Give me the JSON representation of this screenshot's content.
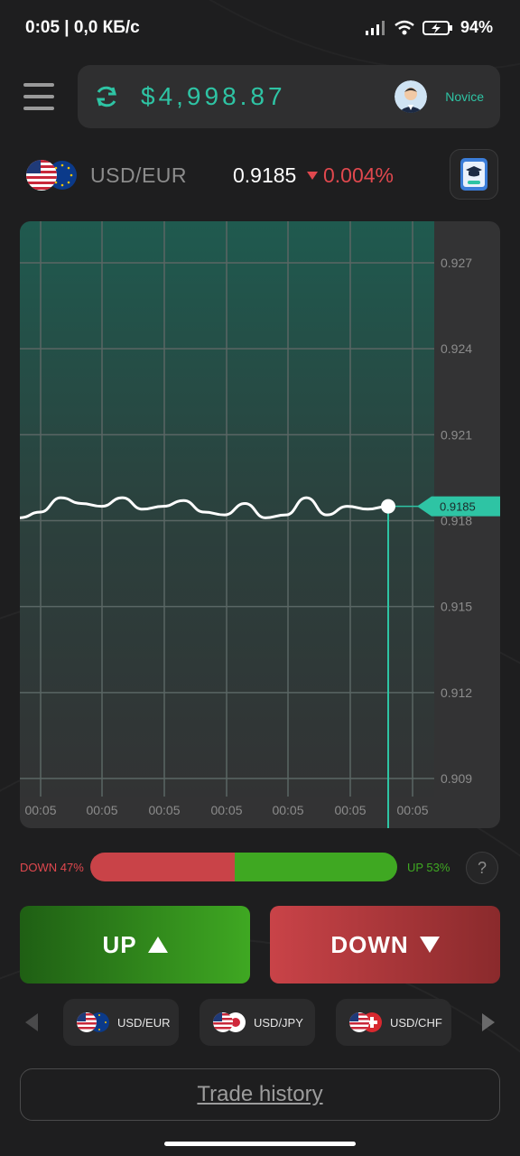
{
  "status_bar": {
    "time_and_speed": "0:05 | 0,0 КБ/с",
    "battery": "94%",
    "icons": [
      "signal-icon",
      "wifi-icon",
      "battery-charging-icon"
    ]
  },
  "header": {
    "menu_icon": "hamburger-menu-icon",
    "refresh_icon": "refresh-icon",
    "balance": "$4,998.87",
    "level": "Novice"
  },
  "asset": {
    "name": "USD/EUR",
    "price": "0.9185",
    "change": "0.004%",
    "change_direction": "down"
  },
  "chart": {
    "current_price_label": "0.9185",
    "y_ticks": [
      "0.927",
      "0.924",
      "0.921",
      "0.918",
      "0.915",
      "0.912",
      "0.909"
    ],
    "x_ticks": [
      "00:05",
      "00:05",
      "00:05",
      "00:05",
      "00:05",
      "00:05",
      "00:05"
    ]
  },
  "chart_data": {
    "type": "line",
    "ylim": [
      0.909,
      0.927
    ],
    "y_tick_values": [
      0.927,
      0.924,
      0.921,
      0.918,
      0.915,
      0.912,
      0.909
    ],
    "series": [
      {
        "values": [
          0.9181,
          0.9183,
          0.9188,
          0.9186,
          0.9185,
          0.9188,
          0.9184,
          0.9185,
          0.9187,
          0.9183,
          0.9182,
          0.9186,
          0.9181,
          0.9182,
          0.9188,
          0.9182,
          0.9185,
          0.9184,
          0.9185
        ]
      }
    ],
    "current_value": 0.9185
  },
  "sentiment": {
    "down_label": "DOWN 47%",
    "up_label": "UP 53%",
    "down_share": 0.47,
    "help": "?"
  },
  "buttons": {
    "up": "UP",
    "down": "DOWN"
  },
  "assets_strip": [
    {
      "label": "USD/EUR"
    },
    {
      "label": "USD/JPY"
    },
    {
      "label": "USD/CHF"
    }
  ],
  "trade_history": "Trade history",
  "colors": {
    "accent": "#2ec4a4",
    "down": "#c94348",
    "up": "#3fa822",
    "background": "#1e1e1f"
  }
}
